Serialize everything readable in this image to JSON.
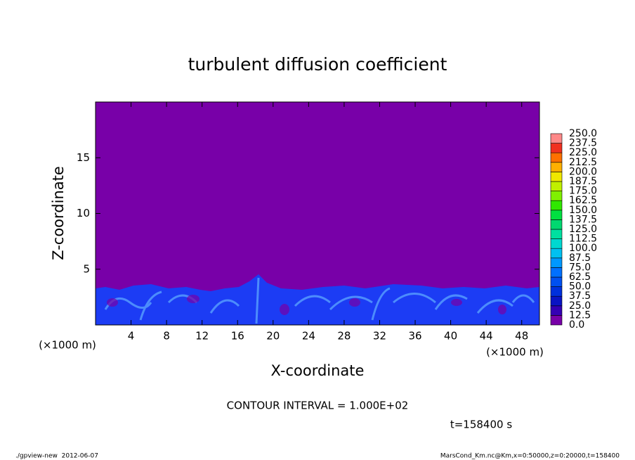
{
  "chart_data": {
    "type": "contour",
    "title": "turbulent diffusion coefficient",
    "xlabel": "X-coordinate",
    "ylabel": "Z-coordinate",
    "xunit": "(×1000 m)",
    "yunit": "(×1000 m)",
    "xlim": [
      0,
      50
    ],
    "xticks": [
      4,
      8,
      12,
      16,
      20,
      24,
      28,
      32,
      36,
      40,
      44,
      48
    ],
    "ylim": [
      0,
      20
    ],
    "yticks": [
      5,
      10,
      15
    ],
    "colorbar": {
      "levels": [
        {
          "value": 0,
          "label": "0.0"
        },
        {
          "value": 12.5,
          "label": "12.5"
        },
        {
          "value": 25,
          "label": "25.0"
        },
        {
          "value": 37.5,
          "label": "37.5"
        },
        {
          "value": 50,
          "label": "50.0"
        },
        {
          "value": 62.5,
          "label": "62.5"
        },
        {
          "value": 75,
          "label": "75.0"
        },
        {
          "value": 87.5,
          "label": "87.5"
        },
        {
          "value": 100,
          "label": "100.0"
        },
        {
          "value": 112.5,
          "label": "112.5"
        },
        {
          "value": 125,
          "label": "125.0"
        },
        {
          "value": 137.5,
          "label": "137.5"
        },
        {
          "value": 150,
          "label": "150.0"
        },
        {
          "value": 162.5,
          "label": "162.5"
        },
        {
          "value": 175,
          "label": "175.0"
        },
        {
          "value": 187.5,
          "label": "187.5"
        },
        {
          "value": 200,
          "label": "200.0"
        },
        {
          "value": 212.5,
          "label": "212.5"
        },
        {
          "value": 225,
          "label": "225.0"
        },
        {
          "value": 237.5,
          "label": "237.5"
        },
        {
          "value": 250,
          "label": "250.0"
        }
      ],
      "colors": [
        "#7800a8",
        "#3400b4",
        "#0a14c4",
        "#0030dc",
        "#0050f0",
        "#0070ff",
        "#0098ff",
        "#00c0f0",
        "#00d8d0",
        "#00e0a0",
        "#00d870",
        "#00e040",
        "#30e800",
        "#80f000",
        "#c0f000",
        "#f0e800",
        "#ffb000",
        "#ff7000",
        "#f03020",
        "#ff8888"
      ]
    },
    "annotations": [
      "CONTOUR INTERVAL = 1.000E+02",
      "t=158400 s"
    ],
    "footer_left": "./gpview-new  2012-06-07",
    "footer_right": "MarsCond_Km.nc@Km,x=0:50000,z=0:20000,t=158400"
  }
}
